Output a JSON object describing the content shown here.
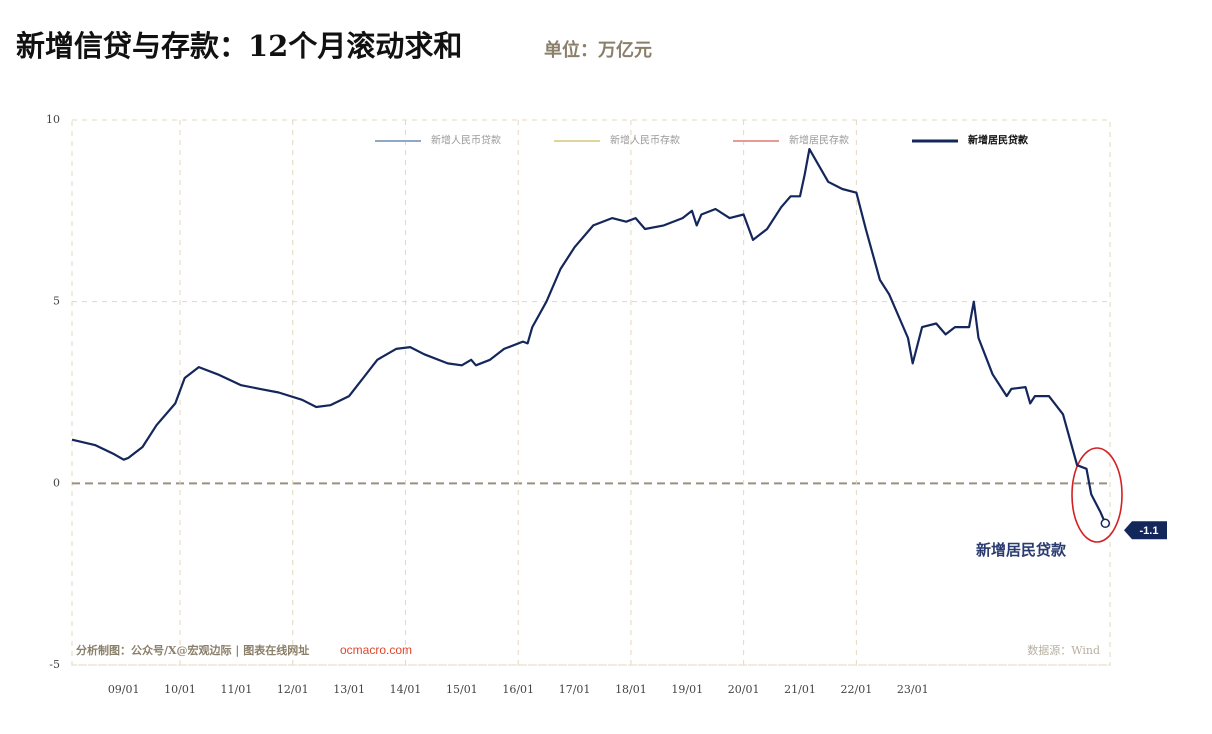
{
  "chart_data": {
    "type": "line",
    "title": "新增信贷与存款：12个月滚动求和",
    "subtitle": "单位：万亿元",
    "x": [
      "2008-02",
      "2008-07",
      "2008-11",
      "2009-01",
      "2009-02",
      "2009-05",
      "2009-08",
      "2009-12",
      "2010-02",
      "2010-05",
      "2010-09",
      "2011-02",
      "2011-06",
      "2011-10",
      "2012-03",
      "2012-06",
      "2012-09",
      "2013-01",
      "2013-04",
      "2013-07",
      "2013-11",
      "2014-02",
      "2014-05",
      "2014-10",
      "2015-01",
      "2015-03",
      "2015-04",
      "2015-07",
      "2015-10",
      "2016-02",
      "2016-03",
      "2016-04",
      "2016-07",
      "2016-10",
      "2017-01",
      "2017-05",
      "2017-09",
      "2017-12",
      "2018-02",
      "2018-04",
      "2018-08",
      "2018-12",
      "2019-02",
      "2019-03",
      "2019-04",
      "2019-07",
      "2019-10",
      "2020-01",
      "2020-03",
      "2020-06",
      "2020-09",
      "2020-11",
      "2021-01",
      "2021-02",
      "2021-03",
      "2021-07",
      "2021-10",
      "2022-01",
      "2022-03",
      "2022-06",
      "2022-08",
      "2022-12",
      "2023-01",
      "2023-03",
      "2023-06",
      "2023-08",
      "2023-10",
      "2024-01",
      "2024-02",
      "2024-03",
      "2024-06",
      "2024-09",
      "2024-10",
      "2025-01",
      "2025-02",
      "2025-03",
      "2025-06",
      "2025-09",
      "2025-12",
      "2026-02",
      "2026-03",
      "2026-05",
      "2026-06"
    ],
    "series": [
      {
        "name": "新增居民贷款",
        "color": "#14275a",
        "values": [
          1.2,
          1.05,
          0.8,
          0.65,
          0.7,
          1.0,
          1.6,
          2.2,
          2.9,
          3.2,
          3.0,
          2.7,
          2.6,
          2.5,
          2.3,
          2.1,
          2.15,
          2.4,
          2.9,
          3.4,
          3.7,
          3.75,
          3.55,
          3.3,
          3.25,
          3.4,
          3.25,
          3.4,
          3.7,
          3.9,
          3.85,
          4.3,
          5.0,
          5.9,
          6.5,
          7.1,
          7.3,
          7.2,
          7.3,
          7.0,
          7.1,
          7.3,
          7.5,
          7.1,
          7.4,
          7.55,
          7.3,
          7.4,
          6.7,
          7.0,
          7.6,
          7.9,
          7.9,
          8.5,
          9.2,
          8.3,
          8.1,
          8.0,
          7.0,
          5.6,
          5.2,
          4.0,
          3.3,
          4.3,
          4.4,
          4.1,
          4.3,
          4.3,
          5.0,
          4.0,
          3.0,
          2.4,
          2.6,
          2.65,
          2.2,
          2.4,
          2.4,
          1.9,
          0.5,
          0.4,
          -0.3,
          -0.8,
          -1.1
        ]
      }
    ],
    "legend": [
      {
        "name": "新增人民币贷款",
        "color": "#8fa8c8"
      },
      {
        "name": "新增人民币存款",
        "color": "#e0d49a"
      },
      {
        "name": "新增居民存款",
        "color": "#e89a96"
      },
      {
        "name": "新增居民贷款",
        "color": "#14275a"
      }
    ],
    "active_legend": 3,
    "xlim": [
      "2008-02",
      "2026-07"
    ],
    "xticks": [
      {
        "value": "2009-01",
        "label": "09/01"
      },
      {
        "value": "2010-01",
        "label": "10/01"
      },
      {
        "value": "2011-01",
        "label": "11/01"
      },
      {
        "value": "2012-01",
        "label": "12/01"
      },
      {
        "value": "2013-01",
        "label": "13/01"
      },
      {
        "value": "2014-01",
        "label": "14/01"
      },
      {
        "value": "2015-01",
        "label": "15/01"
      },
      {
        "value": "2016-01",
        "label": "16/01"
      },
      {
        "value": "2017-01",
        "label": "17/01"
      },
      {
        "value": "2018-01",
        "label": "18/01"
      },
      {
        "value": "2019-01",
        "label": "19/01"
      },
      {
        "value": "2020-01",
        "label": "20/01"
      },
      {
        "value": "2021-01",
        "label": "21/01"
      },
      {
        "value": "2022-01",
        "label": "22/01"
      },
      {
        "value": "2023-01",
        "label": "23/01"
      }
    ],
    "ylim": [
      -5,
      10
    ],
    "yticks": [
      -5,
      0,
      5,
      10
    ],
    "grid": true,
    "annotation": "新增居民贷款",
    "credit": "分析制图：公众号/X@宏观边际 | 图表在线网址",
    "url": "ocmacro.com",
    "source": "数据源：Wind"
  }
}
